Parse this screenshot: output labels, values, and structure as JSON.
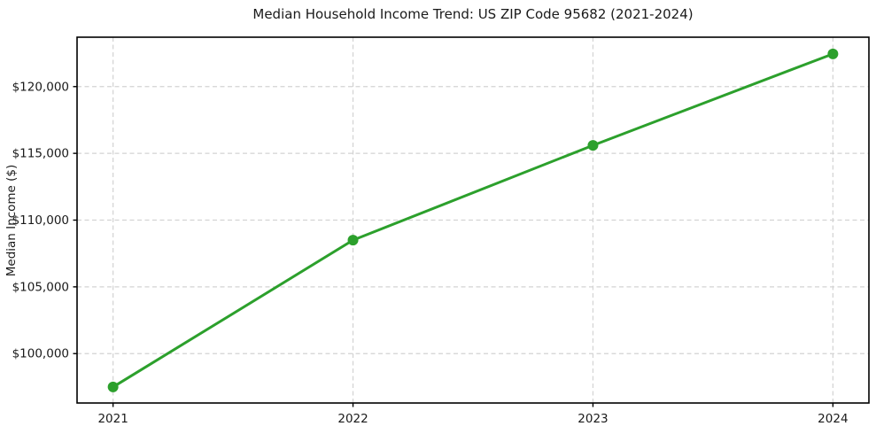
{
  "chart_data": {
    "type": "line",
    "title": "Median Household Income Trend: US ZIP Code 95682 (2021-2024)",
    "xlabel": "",
    "ylabel": "Median Income ($)",
    "x": [
      2021,
      2022,
      2023,
      2024
    ],
    "series": [
      {
        "name": "Median household income",
        "values": [
          97500,
          108500,
          115600,
          122450
        ],
        "color": "#2ca02c",
        "line_width": 3,
        "marker": "circle",
        "marker_size": 6
      }
    ],
    "xticks": [
      {
        "value": 2021,
        "label": "2021"
      },
      {
        "value": 2022,
        "label": "2022"
      },
      {
        "value": 2023,
        "label": "2023"
      },
      {
        "value": 2024,
        "label": "2024"
      }
    ],
    "yticks": [
      {
        "value": 100000,
        "label": "$100,000"
      },
      {
        "value": 105000,
        "label": "$105,000"
      },
      {
        "value": 110000,
        "label": "$110,000"
      },
      {
        "value": 115000,
        "label": "$115,000"
      },
      {
        "value": 120000,
        "label": "$120,000"
      }
    ],
    "xlim": [
      2020.85,
      2024.15
    ],
    "ylim": [
      96300,
      123700
    ],
    "grid": {
      "show": true,
      "color": "#d3d3d3",
      "dash": "5,3.5"
    },
    "legend": {
      "show": false
    },
    "frame_color": "#000000",
    "text_color": "#1a1a1a"
  }
}
